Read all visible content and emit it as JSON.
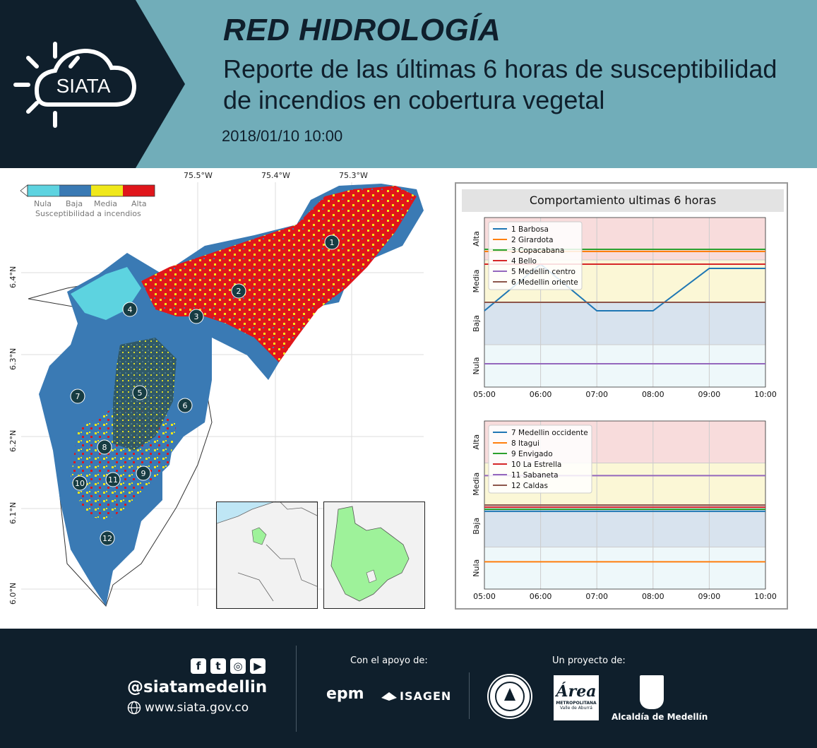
{
  "header": {
    "logo_text": "SIATA",
    "title": "RED HIDROLOGÍA",
    "subtitle_line1": "Reporte de las últimas 6 horas de susceptibilidad",
    "subtitle_line2": "de incendios en cobertura vegetal",
    "datetime": "2018/01/10 10:00"
  },
  "map": {
    "colorbar": {
      "categories": [
        "Nula",
        "Baja",
        "Media",
        "Alta"
      ],
      "colors": [
        "#5dd3e0",
        "#3a7ab4",
        "#f0e81a",
        "#e0161b"
      ],
      "label": "Susceptibilidad a incendios"
    },
    "lon_ticks": [
      "75.5°W",
      "75.4°W",
      "75.3°W"
    ],
    "lat_ticks": [
      "6.4°N",
      "6.3°N",
      "6.2°N",
      "6.1°N",
      "6.0°N"
    ],
    "stations": [
      "1",
      "2",
      "3",
      "4",
      "5",
      "6",
      "7",
      "8",
      "9",
      "10",
      "11",
      "12"
    ]
  },
  "chart_panel": {
    "title": "Comportamiento ultimas 6 horas"
  },
  "chart_data": [
    {
      "type": "line",
      "x": [
        "05:00",
        "06:00",
        "07:00",
        "08:00",
        "09:00",
        "10:00"
      ],
      "y_categories": [
        "Nula",
        "Baja",
        "Media",
        "Alta"
      ],
      "band_colors": [
        "#eef8fa",
        "#d8e3ee",
        "#fbf7d6",
        "#f8dcdc"
      ],
      "legend_position": "top-left",
      "grid": true,
      "series": [
        {
          "name": "1 Barbosa",
          "color": "#1f77b4",
          "values": [
            1.8,
            2.9,
            1.8,
            1.8,
            2.8,
            2.8
          ]
        },
        {
          "name": "2 Girardota",
          "color": "#ff7f0e",
          "values": [
            3.2,
            3.2,
            3.2,
            3.2,
            3.2,
            3.2
          ]
        },
        {
          "name": "3 Copacabana",
          "color": "#2ca02c",
          "values": [
            3.25,
            3.25,
            3.25,
            3.25,
            3.25,
            3.25
          ]
        },
        {
          "name": "4 Bello",
          "color": "#d62728",
          "values": [
            2.9,
            2.9,
            2.9,
            2.9,
            2.9,
            2.9
          ]
        },
        {
          "name": "5 Medellin centro",
          "color": "#9467bd",
          "values": [
            0.55,
            0.55,
            0.55,
            0.55,
            0.55,
            0.55
          ]
        },
        {
          "name": "6 Medellin oriente",
          "color": "#8c564b",
          "values": [
            2.0,
            2.0,
            2.0,
            2.0,
            2.0,
            2.0
          ]
        }
      ]
    },
    {
      "type": "line",
      "x": [
        "05:00",
        "06:00",
        "07:00",
        "08:00",
        "09:00",
        "10:00"
      ],
      "y_categories": [
        "Nula",
        "Baja",
        "Media",
        "Alta"
      ],
      "band_colors": [
        "#eef8fa",
        "#d8e3ee",
        "#fbf7d6",
        "#f8dcdc"
      ],
      "legend_position": "top-left",
      "grid": true,
      "series": [
        {
          "name": "7 Medellin occidente",
          "color": "#1f77b4",
          "values": [
            1.85,
            1.85,
            1.85,
            1.85,
            1.85,
            1.85
          ]
        },
        {
          "name": "8 Itagui",
          "color": "#ff7f0e",
          "values": [
            0.65,
            0.65,
            0.65,
            0.65,
            0.65,
            0.65
          ]
        },
        {
          "name": "9 Envigado",
          "color": "#2ca02c",
          "values": [
            1.9,
            1.9,
            1.9,
            1.9,
            1.9,
            1.9
          ]
        },
        {
          "name": "10 La Estrella",
          "color": "#d62728",
          "values": [
            1.95,
            1.95,
            1.95,
            1.95,
            1.95,
            1.95
          ]
        },
        {
          "name": "11 Sabaneta",
          "color": "#9467bd",
          "values": [
            2.7,
            2.7,
            2.7,
            2.7,
            2.7,
            2.7
          ]
        },
        {
          "name": "12 Caldas",
          "color": "#8c564b",
          "values": [
            2.0,
            2.0,
            2.0,
            2.0,
            2.0,
            2.0
          ]
        }
      ]
    }
  ],
  "footer": {
    "social_icons": [
      "facebook-icon",
      "twitter-icon",
      "instagram-icon",
      "youtube-icon"
    ],
    "handle": "@siatamedellin",
    "website": "www.siata.gov.co",
    "support_label": "Con el apoyo de:",
    "project_label": "Un proyecto de:",
    "epm": "epm",
    "isagen": "ISAGEN",
    "area_title": "Área",
    "area_line1": "METROPOLITANA",
    "area_line2": "Valle de Aburrá",
    "alcaldia": "Alcaldía de Medellín"
  }
}
